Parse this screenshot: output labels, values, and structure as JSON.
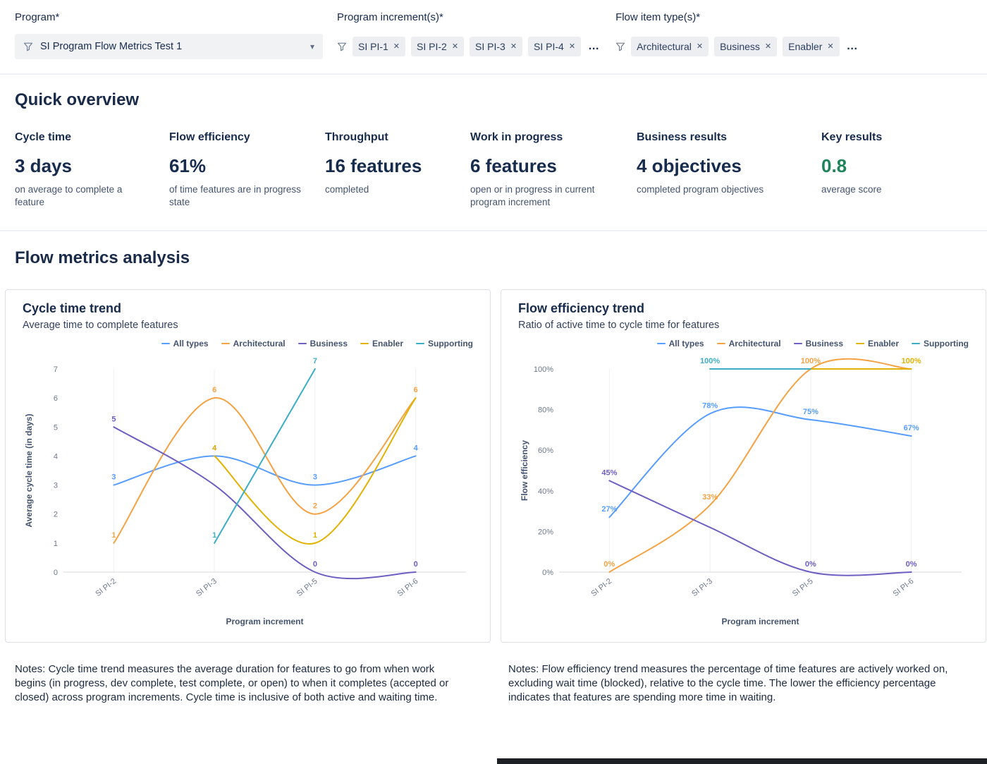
{
  "icons": {
    "filter": "funnel",
    "chevron_down": "▾",
    "remove": "✕"
  },
  "filters": {
    "program": {
      "label": "Program*",
      "value": "SI Program Flow Metrics Test 1"
    },
    "increments": {
      "label": "Program increment(s)*",
      "values": [
        "SI PI-1",
        "SI PI-2",
        "SI PI-3",
        "SI PI-4"
      ],
      "overflow": "…"
    },
    "flow_item_types": {
      "label": "Flow item type(s)*",
      "values": [
        "Architectural",
        "Business",
        "Enabler"
      ],
      "overflow": "…"
    }
  },
  "quick_overview": {
    "heading": "Quick overview",
    "metrics": [
      {
        "title": "Cycle time",
        "value": "3 days",
        "caption": "on average to complete a feature",
        "value_color": "#172B4D"
      },
      {
        "title": "Flow efficiency",
        "value": "61%",
        "caption": "of time features are in progress state",
        "value_color": "#172B4D"
      },
      {
        "title": "Throughput",
        "value": "16 features",
        "caption": "completed",
        "value_color": "#172B4D"
      },
      {
        "title": "Work in progress",
        "value": "6 features",
        "caption": "open or in progress in current program increment",
        "value_color": "#172B4D"
      },
      {
        "title": "Business results",
        "value": "4 objectives",
        "caption": "completed program objectives",
        "value_color": "#172B4D"
      },
      {
        "title": "Key results",
        "value": "0.8",
        "caption": "average score",
        "value_color": "#1F845A"
      }
    ]
  },
  "analysis": {
    "heading": "Flow metrics analysis",
    "notes_left": "Notes: Cycle time trend measures the average duration for features to go from when work begins (in progress, dev complete, test complete, or open) to when it completes (accepted or closed) across program increments. Cycle time is inclusive of both active and waiting time.",
    "notes_right": "Notes: Flow efficiency trend measures the percentage of time features are actively worked on, excluding wait time (blocked), relative to the cycle time. The lower the efficiency percentage indicates that features are spending more time in waiting."
  },
  "chart_data": [
    {
      "type": "line",
      "title": "Cycle time trend",
      "subtitle": "Average time to complete features",
      "xlabel": "Program increment",
      "ylabel": "Average cycle time (in days)",
      "categories": [
        "SI PI-2",
        "SI PI-3",
        "SI PI-5",
        "SI PI-6"
      ],
      "ylim": [
        0,
        7
      ],
      "y_ticks": [
        0,
        1,
        2,
        3,
        4,
        5,
        6,
        7
      ],
      "y_suffix": "",
      "grid": "vertical-light",
      "legend_position": "top-right",
      "series": [
        {
          "name": "All types",
          "color": "#579DFF",
          "values": [
            3,
            4,
            3,
            4
          ],
          "labels": [
            "3",
            "4",
            "3",
            "4"
          ]
        },
        {
          "name": "Architectural",
          "color": "#F5A243",
          "values": [
            1,
            6,
            2,
            6
          ],
          "labels": [
            "1",
            "6",
            "2",
            "6"
          ]
        },
        {
          "name": "Business",
          "color": "#6E5EC2",
          "values": [
            5,
            3,
            0,
            0
          ],
          "labels": [
            "5",
            null,
            "0",
            "0"
          ]
        },
        {
          "name": "Enabler",
          "color": "#E2B203",
          "values": [
            null,
            4,
            1,
            6
          ],
          "labels": [
            null,
            "4",
            "1",
            null
          ]
        },
        {
          "name": "Supporting",
          "color": "#3BAEC5",
          "values": [
            null,
            1,
            7,
            null
          ],
          "labels": [
            null,
            "1",
            "7",
            null
          ]
        }
      ]
    },
    {
      "type": "line",
      "title": "Flow efficiency trend",
      "subtitle": "Ratio of active time to cycle time for features",
      "xlabel": "Program increment",
      "ylabel": "Flow efficiency",
      "categories": [
        "SI PI-2",
        "SI PI-3",
        "SI PI-5",
        "SI PI-6"
      ],
      "ylim": [
        0,
        100
      ],
      "y_ticks": [
        0,
        20,
        40,
        60,
        80,
        100
      ],
      "y_suffix": "%",
      "grid": "vertical-light",
      "legend_position": "top-right",
      "series": [
        {
          "name": "All types",
          "color": "#579DFF",
          "values": [
            27,
            78,
            75,
            67
          ],
          "labels": [
            "27%",
            "78%",
            "75%",
            "67%"
          ]
        },
        {
          "name": "Architectural",
          "color": "#F5A243",
          "values": [
            0,
            33,
            100,
            100
          ],
          "labels": [
            "0%",
            "33%",
            "100%",
            null
          ]
        },
        {
          "name": "Business",
          "color": "#6E5EC2",
          "values": [
            45,
            22,
            0,
            0
          ],
          "labels": [
            "45%",
            null,
            "0%",
            "0%"
          ]
        },
        {
          "name": "Enabler",
          "color": "#E2B203",
          "values": [
            null,
            100,
            100,
            100
          ],
          "labels": [
            null,
            null,
            null,
            "100%"
          ]
        },
        {
          "name": "Supporting",
          "color": "#3BAEC5",
          "values": [
            null,
            100,
            100,
            null
          ],
          "labels": [
            null,
            "100%",
            null,
            null
          ]
        }
      ]
    }
  ]
}
